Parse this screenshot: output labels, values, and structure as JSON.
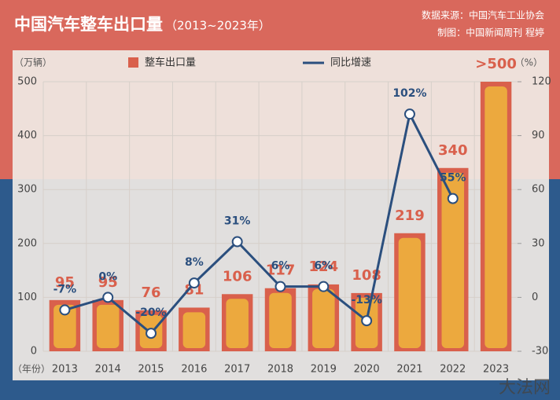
{
  "chart_data": {
    "type": "bar_line",
    "title": "中国汽车整车出口量",
    "subtitle": "（2013~2023年）",
    "source": "数据来源：中国汽车工业协会",
    "credit": "制图：中国新闻周刊 程婷",
    "ylabel": "（万辆）",
    "y2label": "（%）",
    "xlabel": "（年份）",
    "watermark": "大法网",
    "categories": [
      "2013",
      "2014",
      "2015",
      "2016",
      "2017",
      "2018",
      "2019",
      "2020",
      "2021",
      "2022",
      "2023"
    ],
    "series": [
      {
        "name": "整车出口量",
        "type": "bar",
        "color": "#d9604c",
        "values": [
          95,
          95,
          76,
          81,
          106,
          117,
          124,
          108,
          219,
          340,
          500
        ],
        "value_labels": [
          "95",
          "95",
          "76",
          "81",
          "106",
          "117",
          "124",
          "108",
          "219",
          "340",
          ">500"
        ]
      },
      {
        "name": "同比增速",
        "type": "line",
        "axis": "y2",
        "color": "#2b4f7e",
        "values": [
          -7,
          0,
          -20,
          8,
          31,
          6,
          6,
          -13,
          102,
          55,
          null
        ],
        "value_labels": [
          "-7%",
          "0%",
          "-20%",
          "8%",
          "31%",
          "6%",
          "6%",
          "-13%",
          "102%",
          "55%",
          null
        ]
      }
    ],
    "ylim": [
      0,
      500
    ],
    "yticks": [
      0,
      100,
      200,
      300,
      400,
      500
    ],
    "y2lim": [
      -30,
      120
    ],
    "y2ticks": [
      -30,
      0,
      30,
      60,
      90,
      120
    ],
    "grid": true
  }
}
